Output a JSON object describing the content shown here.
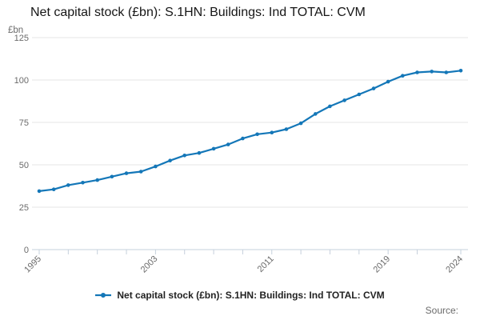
{
  "header": {
    "title": "Net capital stock (£bn): S.1HN: Buildings: Ind TOTAL: CVM"
  },
  "y_axis": {
    "unit": "£bn"
  },
  "legend": {
    "label": "Net capital stock (£bn): S.1HN: Buildings: Ind TOTAL: CVM"
  },
  "footer": {
    "source_label": "Source:"
  },
  "chart_data": {
    "type": "line",
    "title": "Net capital stock (£bn): S.1HN: Buildings: Ind TOTAL: CVM",
    "xlabel": "",
    "ylabel": "£bn",
    "x": [
      1995,
      1996,
      1997,
      1998,
      1999,
      2000,
      2001,
      2002,
      2003,
      2004,
      2005,
      2006,
      2007,
      2008,
      2009,
      2010,
      2011,
      2012,
      2013,
      2014,
      2015,
      2016,
      2017,
      2018,
      2019,
      2020,
      2021,
      2022,
      2023,
      2024
    ],
    "values": [
      34.5,
      35.5,
      38,
      39.5,
      41,
      43,
      45,
      46,
      49,
      52.5,
      55.5,
      57,
      59.5,
      62,
      65.5,
      68,
      69,
      71,
      74.5,
      80,
      84.5,
      88,
      91.5,
      95,
      99,
      102.5,
      104.5,
      105,
      104.5,
      105.5
    ],
    "series_name": "Net capital stock (£bn): S.1HN: Buildings: Ind TOTAL: CVM",
    "ylim": [
      0,
      125
    ],
    "x_range": [
      1995,
      2024
    ],
    "y_ticks": [
      0,
      25,
      50,
      75,
      100,
      125
    ],
    "x_ticks": [
      1995,
      1997,
      1999,
      2001,
      2003,
      2005,
      2007,
      2009,
      2011,
      2013,
      2015,
      2017,
      2019,
      2021,
      2024
    ],
    "x_tick_labels": [
      1995,
      2003,
      2011,
      2019,
      2024
    ],
    "grid": "horizontal",
    "legend_position": "bottom",
    "marker": "circle",
    "colors": {
      "line": "#1477b8",
      "grid": "#e6e6e6",
      "axis": "#c6d0dc",
      "tick_text": "#6b6b6b",
      "title_text": "#161616"
    }
  }
}
